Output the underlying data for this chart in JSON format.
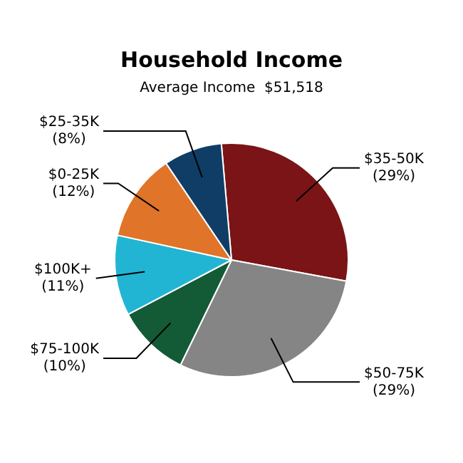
{
  "chart_data": {
    "type": "pie",
    "title": "Household Income",
    "subtitle": "Average Income  $51,518",
    "categories": [
      "$35-50K",
      "$50-75K",
      "$75-100K",
      "$100K+",
      "$0-25K",
      "$25-35K"
    ],
    "values": [
      29,
      29,
      10,
      11,
      12,
      8
    ],
    "value_labels": [
      "(29%)",
      "(29%)",
      "(10%)",
      "(11%)",
      "(12%)",
      "(8%)"
    ],
    "colors": [
      "#7b1416",
      "#858585",
      "#135a36",
      "#22b5d3",
      "#e07428",
      "#0f3d66"
    ],
    "legend": false
  }
}
